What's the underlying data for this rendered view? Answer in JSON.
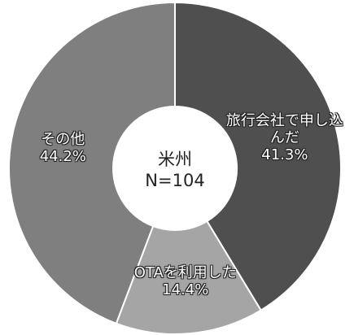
{
  "chart_data": {
    "type": "donut",
    "center_title": "米州",
    "center_subtitle": "N=104",
    "categories": [
      "旅行会社で申し込んだ",
      "OTAを利用した",
      "その他"
    ],
    "values": [
      41.3,
      14.4,
      44.2
    ],
    "value_labels": [
      "41.3%",
      "14.4%",
      "44.2%"
    ],
    "colors": [
      "#4f4f4f",
      "#a5a5a5",
      "#7f7f7f"
    ]
  }
}
